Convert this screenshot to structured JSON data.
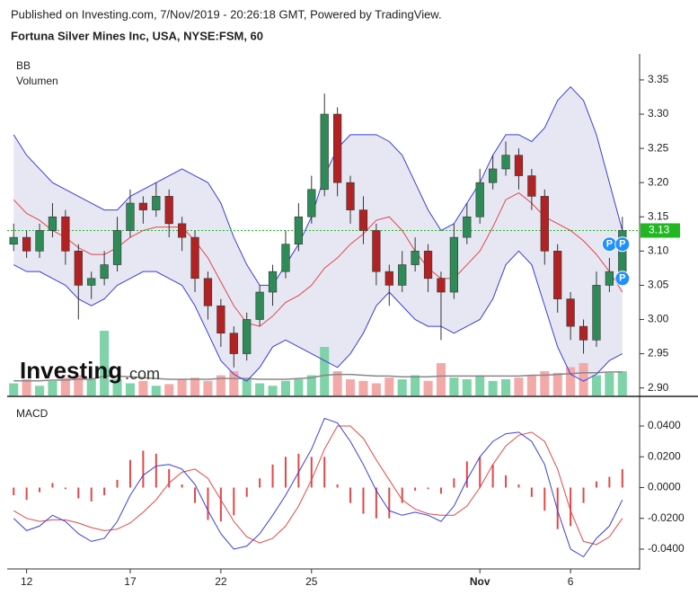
{
  "chart_data": {
    "type": "candlestick",
    "header": "Published on Investing.com, 7/Nov/2019 - 20:26:18 GMT, Powered by TradingView.",
    "title": "Fortuna Silver Mines Inc, USA, NYSE:FSM, 60",
    "indicator_labels": [
      "BB",
      "Volumen"
    ],
    "macd_label": "MACD",
    "watermark": [
      "Investing",
      ".com"
    ],
    "categories": [
      null,
      "12",
      null,
      null,
      null,
      null,
      null,
      null,
      null,
      "17",
      null,
      null,
      null,
      null,
      null,
      null,
      "22",
      null,
      null,
      null,
      null,
      null,
      null,
      "25",
      null,
      null,
      null,
      null,
      null,
      null,
      null,
      null,
      null,
      null,
      null,
      null,
      "Nov",
      null,
      null,
      null,
      null,
      null,
      null,
      "6",
      null,
      null,
      null,
      null
    ],
    "open": [
      3.11,
      3.12,
      3.1,
      3.13,
      3.15,
      3.1,
      3.05,
      3.06,
      3.08,
      3.13,
      3.17,
      3.16,
      3.18,
      3.14,
      3.12,
      3.06,
      3.02,
      2.98,
      2.95,
      3.0,
      3.04,
      3.07,
      3.11,
      3.15,
      3.19,
      3.3,
      3.2,
      3.16,
      3.13,
      3.07,
      3.05,
      3.08,
      3.1,
      3.06,
      3.04,
      3.12,
      3.15,
      3.2,
      3.22,
      3.24,
      3.21,
      3.18,
      3.1,
      3.03,
      2.99,
      2.97,
      3.05,
      3.07
    ],
    "high": [
      3.14,
      3.13,
      3.14,
      3.17,
      3.16,
      3.11,
      3.07,
      3.1,
      3.15,
      3.19,
      3.18,
      3.2,
      3.19,
      3.15,
      3.13,
      3.07,
      3.03,
      2.99,
      3.01,
      3.05,
      3.08,
      3.13,
      3.17,
      3.21,
      3.33,
      3.31,
      3.21,
      3.18,
      3.14,
      3.08,
      3.1,
      3.12,
      3.11,
      3.07,
      3.14,
      3.17,
      3.22,
      3.24,
      3.26,
      3.25,
      3.22,
      3.19,
      3.11,
      3.04,
      3.0,
      3.07,
      3.09,
      3.15
    ],
    "low": [
      3.1,
      3.09,
      3.09,
      3.12,
      3.08,
      3.0,
      3.03,
      3.05,
      3.07,
      3.12,
      3.14,
      3.15,
      3.12,
      3.1,
      3.04,
      3.0,
      2.96,
      2.93,
      2.94,
      2.99,
      3.02,
      3.06,
      3.1,
      3.14,
      3.18,
      3.18,
      3.14,
      3.11,
      3.05,
      3.02,
      3.04,
      3.07,
      3.04,
      2.97,
      3.03,
      3.11,
      3.14,
      3.19,
      3.21,
      3.19,
      3.16,
      3.08,
      3.01,
      2.97,
      2.95,
      2.96,
      3.04,
      3.06
    ],
    "close": [
      3.12,
      3.1,
      3.13,
      3.15,
      3.1,
      3.05,
      3.06,
      3.08,
      3.13,
      3.17,
      3.16,
      3.18,
      3.14,
      3.12,
      3.06,
      3.02,
      2.98,
      2.95,
      3.0,
      3.04,
      3.07,
      3.11,
      3.15,
      3.19,
      3.3,
      3.2,
      3.16,
      3.13,
      3.07,
      3.05,
      3.08,
      3.1,
      3.06,
      3.04,
      3.12,
      3.15,
      3.2,
      3.22,
      3.24,
      3.21,
      3.18,
      3.1,
      3.03,
      2.99,
      2.97,
      3.05,
      3.07,
      3.13
    ],
    "up_color": "#2e8b57",
    "down_color": "#b22222",
    "bb_upper": [
      3.27,
      3.24,
      3.22,
      3.2,
      3.19,
      3.18,
      3.17,
      3.16,
      3.16,
      3.18,
      3.19,
      3.2,
      3.21,
      3.22,
      3.21,
      3.2,
      3.17,
      3.12,
      3.08,
      3.05,
      3.05,
      3.08,
      3.11,
      3.15,
      3.21,
      3.25,
      3.27,
      3.27,
      3.27,
      3.26,
      3.24,
      3.2,
      3.16,
      3.13,
      3.14,
      3.17,
      3.2,
      3.24,
      3.27,
      3.27,
      3.26,
      3.28,
      3.32,
      3.34,
      3.32,
      3.27,
      3.2,
      3.13
    ],
    "bb_middle": [
      3.175,
      3.155,
      3.145,
      3.13,
      3.12,
      3.105,
      3.095,
      3.095,
      3.105,
      3.12,
      3.13,
      3.135,
      3.135,
      3.135,
      3.115,
      3.09,
      3.055,
      3.02,
      2.995,
      2.99,
      3.005,
      3.025,
      3.035,
      3.05,
      3.075,
      3.09,
      3.11,
      3.125,
      3.145,
      3.15,
      3.13,
      3.1,
      3.075,
      3.06,
      3.06,
      3.08,
      3.1,
      3.135,
      3.175,
      3.185,
      3.17,
      3.15,
      3.14,
      3.13,
      3.115,
      3.095,
      3.07,
      3.04
    ],
    "bb_lower": [
      3.08,
      3.07,
      3.07,
      3.06,
      3.05,
      3.03,
      3.02,
      3.03,
      3.05,
      3.06,
      3.07,
      3.07,
      3.06,
      3.05,
      3.02,
      2.98,
      2.94,
      2.92,
      2.91,
      2.93,
      2.96,
      2.97,
      2.96,
      2.95,
      2.94,
      2.93,
      2.95,
      2.98,
      3.02,
      3.04,
      3.02,
      3.0,
      2.99,
      2.99,
      2.98,
      2.99,
      3.0,
      3.03,
      3.08,
      3.1,
      3.08,
      3.02,
      2.96,
      2.92,
      2.91,
      2.92,
      2.94,
      2.95
    ],
    "bb_upper_color": "#3a3fd6",
    "bb_middle_color": "#e04848",
    "bb_fill": "#e3e3f2",
    "volume": [
      15,
      20,
      12,
      18,
      22,
      25,
      20,
      80,
      20,
      15,
      18,
      12,
      14,
      20,
      22,
      18,
      25,
      30,
      20,
      15,
      12,
      18,
      20,
      25,
      60,
      30,
      20,
      18,
      15,
      22,
      20,
      25,
      18,
      40,
      22,
      20,
      25,
      18,
      20,
      22,
      25,
      30,
      28,
      35,
      40,
      25,
      28,
      30
    ],
    "volume_ma": [
      18,
      18,
      18,
      19,
      19,
      20,
      20,
      24,
      24,
      23,
      22,
      21,
      20,
      20,
      20,
      20,
      21,
      21,
      21,
      20,
      20,
      20,
      21,
      22,
      25,
      26,
      26,
      25,
      24,
      24,
      23,
      23,
      23,
      24,
      24,
      24,
      24,
      24,
      24,
      24,
      25,
      25,
      26,
      27,
      28,
      28,
      29,
      29
    ],
    "volume_ylim": [
      0,
      100
    ],
    "volume_up_color": "#7fd3a8",
    "volume_down_color": "#f4a9a9",
    "volume_ma_color": "#888888",
    "ylim": [
      2.889,
      3.388
    ],
    "yticks": [
      3.35,
      {
        "value": 3.3,
        "label": "3.30"
      },
      3.25,
      {
        "value": 3.2,
        "label": "3.20"
      },
      3.15,
      {
        "value": 3.1,
        "label": "3.10"
      },
      3.05,
      {
        "value": 3.0,
        "label": "3.00"
      },
      2.95,
      {
        "value": 2.9,
        "label": "2.90"
      }
    ],
    "last_price": 3.13,
    "last_price_color": "#22b722",
    "markers": [
      {
        "label": "P",
        "index": 46,
        "price": 3.11
      },
      {
        "label": "P",
        "index": 47,
        "price": 3.11
      },
      {
        "label": "P",
        "index": 47,
        "price": 3.06
      }
    ],
    "macd": [
      -0.02,
      -0.028,
      -0.025,
      -0.018,
      -0.022,
      -0.03,
      -0.035,
      -0.033,
      -0.022,
      -0.005,
      0.008,
      0.014,
      0.015,
      0.012,
      0.002,
      -0.015,
      -0.03,
      -0.04,
      -0.038,
      -0.03,
      -0.018,
      -0.005,
      0.01,
      0.025,
      0.045,
      0.042,
      0.03,
      0.015,
      -0.002,
      -0.015,
      -0.018,
      -0.016,
      -0.018,
      -0.022,
      -0.012,
      0.005,
      0.02,
      0.03,
      0.035,
      0.036,
      0.03,
      0.015,
      -0.015,
      -0.04,
      -0.045,
      -0.033,
      -0.025,
      -0.008
    ],
    "signal": [
      -0.015,
      -0.02,
      -0.022,
      -0.021,
      -0.021,
      -0.023,
      -0.026,
      -0.028,
      -0.027,
      -0.023,
      -0.016,
      -0.008,
      0.003,
      0.01,
      0.012,
      0.006,
      -0.008,
      -0.022,
      -0.032,
      -0.036,
      -0.033,
      -0.025,
      -0.012,
      0.005,
      0.025,
      0.04,
      0.04,
      0.032,
      0.018,
      0.005,
      -0.008,
      -0.014,
      -0.017,
      -0.018,
      -0.018,
      -0.012,
      0.0,
      0.015,
      0.027,
      0.034,
      0.036,
      0.03,
      0.012,
      -0.015,
      -0.035,
      -0.037,
      -0.032,
      -0.02
    ],
    "histogram": [
      -0.005,
      -0.008,
      -0.003,
      0.003,
      -0.001,
      -0.007,
      -0.009,
      -0.005,
      0.005,
      0.018,
      0.024,
      0.022,
      0.012,
      0.002,
      -0.01,
      -0.021,
      -0.022,
      -0.018,
      -0.006,
      0.006,
      0.015,
      0.02,
      0.022,
      0.02,
      0.02,
      0.002,
      -0.01,
      -0.017,
      -0.02,
      -0.02,
      -0.01,
      -0.002,
      -0.001,
      -0.004,
      0.006,
      0.017,
      0.02,
      0.015,
      0.008,
      0.002,
      -0.006,
      -0.015,
      -0.027,
      -0.025,
      -0.01,
      0.004,
      0.007,
      0.012
    ],
    "macd_color": "#3a3fd6",
    "signal_color": "#e04848",
    "histogram_color": "#e04848",
    "macd_ylim": [
      -0.0523,
      0.0587
    ],
    "macd_yticks": [
      {
        "value": 0.04,
        "label": "0.0400"
      },
      {
        "value": 0.02,
        "label": "0.0200"
      },
      {
        "value": 0,
        "label": "0.0000"
      },
      {
        "value": -0.02,
        "label": "-0.0200"
      },
      {
        "value": -0.04,
        "label": "-0.0400"
      }
    ]
  }
}
